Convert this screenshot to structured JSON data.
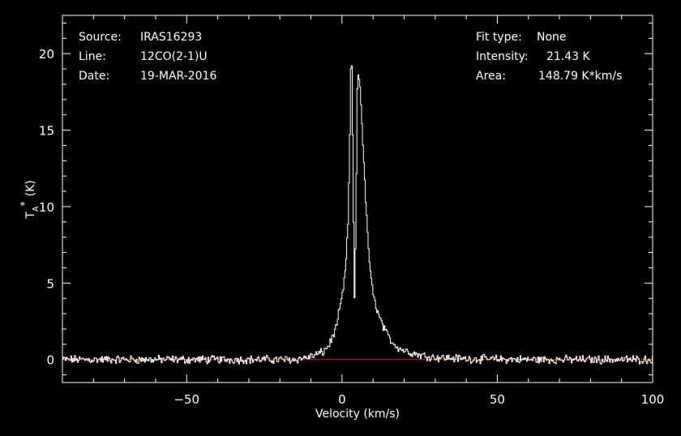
{
  "info": {
    "source_label": "Source:",
    "source_value": "IRAS16293",
    "line_label": "Line:",
    "line_value": "12CO(2-1)U",
    "date_label": "Date:",
    "date_value": "19-MAR-2016",
    "fit_label": "Fit type:",
    "fit_value": "None",
    "intensity_label": "Intensity:",
    "intensity_value": "21.43 K",
    "area_label": "Area:",
    "area_value": "148.79 K*km/s"
  },
  "colors": {
    "background": "#000000",
    "foreground": "#ffffff",
    "baseline": "#ff0000"
  },
  "chart_data": {
    "type": "line",
    "title": "",
    "xlabel": "Velocity (km/s)",
    "ylabel_main": "T",
    "ylabel_sub": "A",
    "ylabel_sup": "*",
    "ylabel_unit": "(K)",
    "xlim": [
      -90,
      100
    ],
    "ylim": [
      -1.5,
      22.5
    ],
    "xticks": [
      -50,
      0,
      50,
      100
    ],
    "xtick_labels": [
      "−50",
      "0",
      "50",
      "100"
    ],
    "yticks": [
      0,
      5,
      10,
      15,
      20
    ],
    "ytick_labels": [
      "0",
      "5",
      "10",
      "15",
      "20"
    ],
    "grid": false,
    "baseline_y": 0,
    "series": [
      {
        "style": "histogram",
        "x": [
          -90,
          -15,
          -10,
          -6,
          -4,
          -2,
          0,
          1,
          2,
          2.6,
          3,
          3.5,
          4,
          4.5,
          5,
          5.5,
          6,
          7,
          8,
          9,
          10,
          12,
          14,
          16,
          18,
          20,
          25,
          30,
          40,
          60,
          100
        ],
        "y": [
          0,
          0,
          0.2,
          0.5,
          1.0,
          2.0,
          4.0,
          5.5,
          9.0,
          15.0,
          21.43,
          14.0,
          3.5,
          9.0,
          18.7,
          18.5,
          17.5,
          13.0,
          9.0,
          6.0,
          4.2,
          2.8,
          1.8,
          1.2,
          0.8,
          0.6,
          0.3,
          0.15,
          0.05,
          0,
          0
        ]
      }
    ]
  }
}
